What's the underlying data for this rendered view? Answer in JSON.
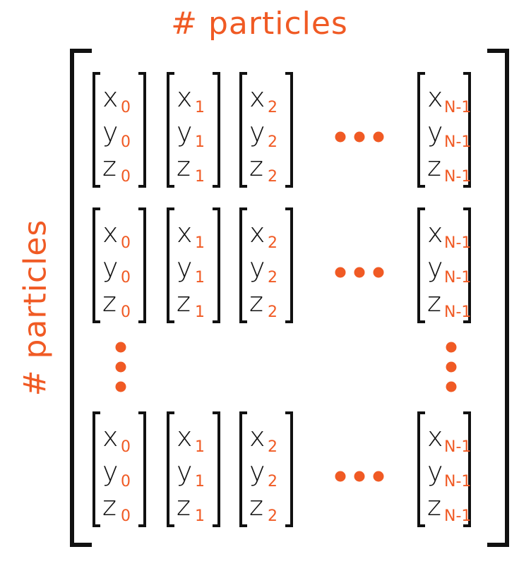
{
  "title_top": "# particles",
  "title_side": "# particles",
  "accent_color": "#f05a24",
  "ink_color": "#111111",
  "vector_letters": [
    "x",
    "y",
    "z"
  ],
  "subscripts": [
    "0",
    "1",
    "2",
    "N-1"
  ],
  "row_count_shown": 3,
  "ellipsis_horizontal": "• • •",
  "ellipsis_vertical": "•\n•\n•"
}
